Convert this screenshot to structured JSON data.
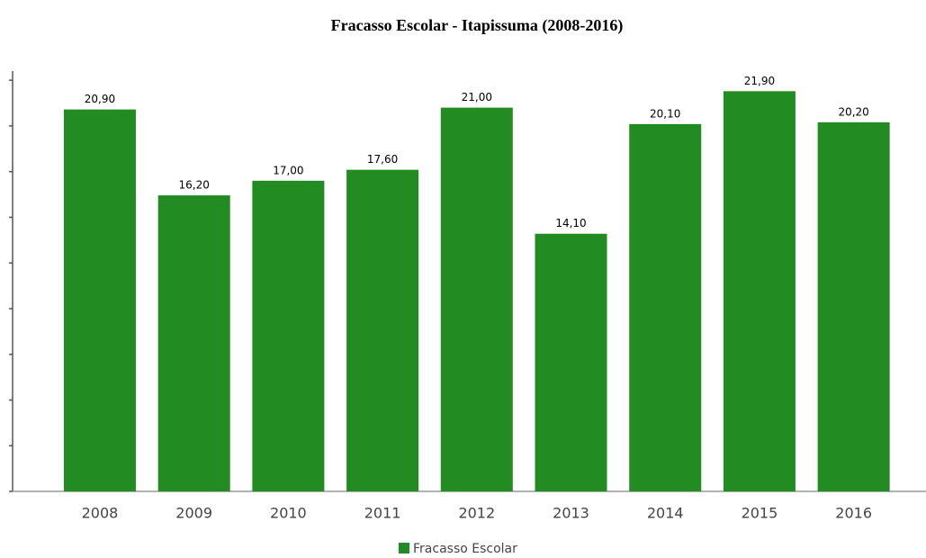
{
  "chart_data": {
    "type": "bar",
    "title": "Fracasso Escolar - Itapissuma (2008-2016)",
    "categories": [
      "2008",
      "2009",
      "2010",
      "2011",
      "2012",
      "2013",
      "2014",
      "2015",
      "2016"
    ],
    "series": [
      {
        "name": "Fracasso Escolar",
        "color": "#228b22",
        "values": [
          20.9,
          16.2,
          17.0,
          17.6,
          21.0,
          14.1,
          20.1,
          21.9,
          20.2
        ],
        "value_labels": [
          "20,90",
          "16,20",
          "17,00",
          "17,60",
          "21,00",
          "14,10",
          "20,10",
          "21,90",
          "20,20"
        ]
      }
    ],
    "ylim": [
      0,
      23
    ],
    "yticks": [
      0,
      2.5,
      5,
      7.5,
      10,
      12.5,
      15,
      17.5,
      20,
      22.5
    ],
    "grid": false
  }
}
